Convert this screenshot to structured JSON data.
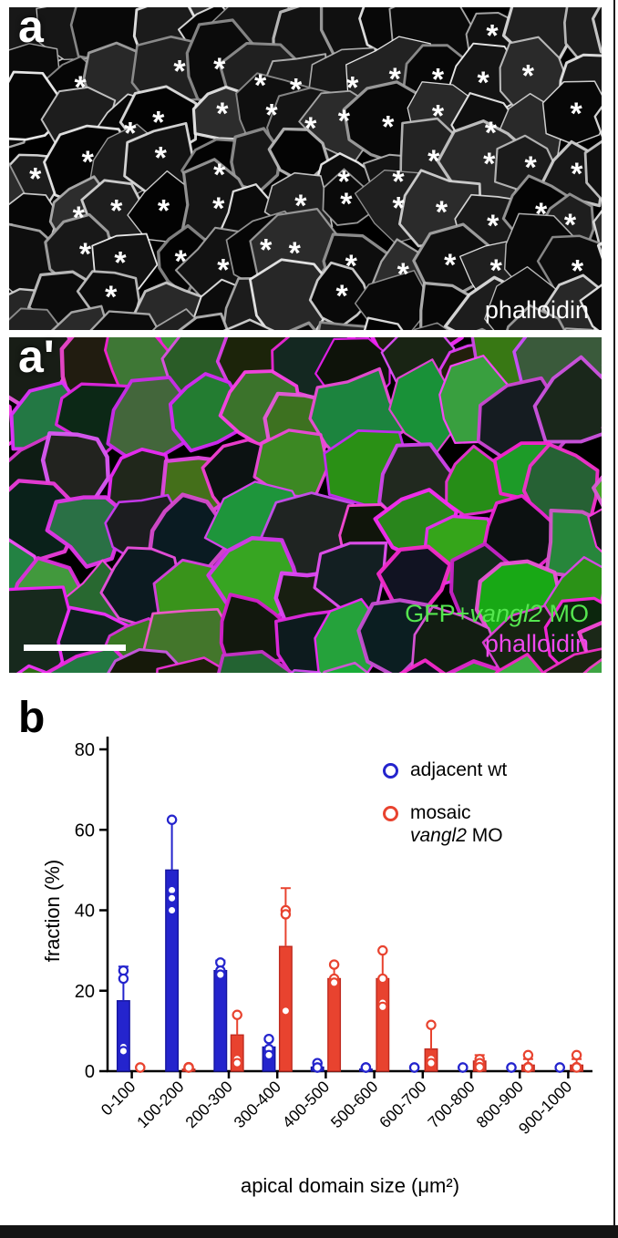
{
  "page": {
    "background": "#ffffff",
    "border_color": "#141414"
  },
  "figure": {
    "panel_a": {
      "label": "a",
      "stain_label": "phalloidin",
      "asterisk_glyph": "*",
      "asterisk_count": 55
    },
    "panel_a_prime": {
      "label": "a'",
      "gfp_prefix": "GFP+",
      "gfp_italic": "vangl2",
      "gfp_suffix": " MO",
      "stain_label": "phalloidin",
      "gfp_color": "#55e64f",
      "stain_color": "#ee49ee"
    },
    "panel_b": {
      "label": "b",
      "legend": {
        "entry1": "adjacent wt",
        "entry2_line1": "mosaic",
        "entry2_italic": "vangl2",
        "entry2_suffix": " MO"
      }
    }
  },
  "chart_data": {
    "type": "bar",
    "title": "",
    "categories": [
      "0-100",
      "100-200",
      "200-300",
      "300-400",
      "400-500",
      "500-600",
      "600-700",
      "700-800",
      "800-900",
      "900-1000"
    ],
    "series": [
      {
        "name": "adjacent wt",
        "color": "#2424cd",
        "edge_color": "#15159f",
        "values": [
          17.5,
          50,
          25,
          6,
          1,
          0.5,
          0,
          0,
          0,
          0
        ],
        "errors": [
          8.5,
          12.5,
          2.5,
          2,
          1,
          0.5,
          0,
          0,
          0,
          0
        ],
        "points": [
          [
            25,
            23,
            6,
            5
          ],
          [
            62.5,
            45,
            43,
            40
          ],
          [
            27,
            25,
            24
          ],
          [
            8,
            5.5,
            4
          ],
          [
            2,
            0.5,
            0
          ],
          [
            0.5,
            0,
            0
          ],
          [
            0,
            0
          ],
          [
            0,
            0
          ],
          [
            0,
            0
          ],
          [
            0,
            0
          ]
        ]
      },
      {
        "name": "mosaic vangl2 MO",
        "color": "#e8432f",
        "edge_color": "#bf2a1f",
        "values": [
          0,
          0.5,
          9,
          31,
          23,
          23,
          5.5,
          2.5,
          1.5,
          1.5
        ],
        "errors": [
          0,
          0.5,
          5,
          14.5,
          3.5,
          7,
          6,
          1.5,
          1.5,
          1.5
        ],
        "points": [
          [
            0,
            0
          ],
          [
            1,
            0,
            0
          ],
          [
            14,
            3,
            2
          ],
          [
            40,
            39,
            15
          ],
          [
            26.5,
            23,
            22
          ],
          [
            30,
            23,
            17,
            16
          ],
          [
            11.5,
            3,
            2
          ],
          [
            3,
            2,
            1
          ],
          [
            4,
            1,
            0.5
          ],
          [
            4,
            1,
            0.5
          ]
        ]
      }
    ],
    "xlabel": "apical domain size (μm²)",
    "ylabel": "fraction (%)",
    "ylim": [
      0,
      80
    ],
    "yticks": [
      0,
      20,
      40,
      60,
      80
    ],
    "legend_position": "top-right",
    "grid": false
  }
}
